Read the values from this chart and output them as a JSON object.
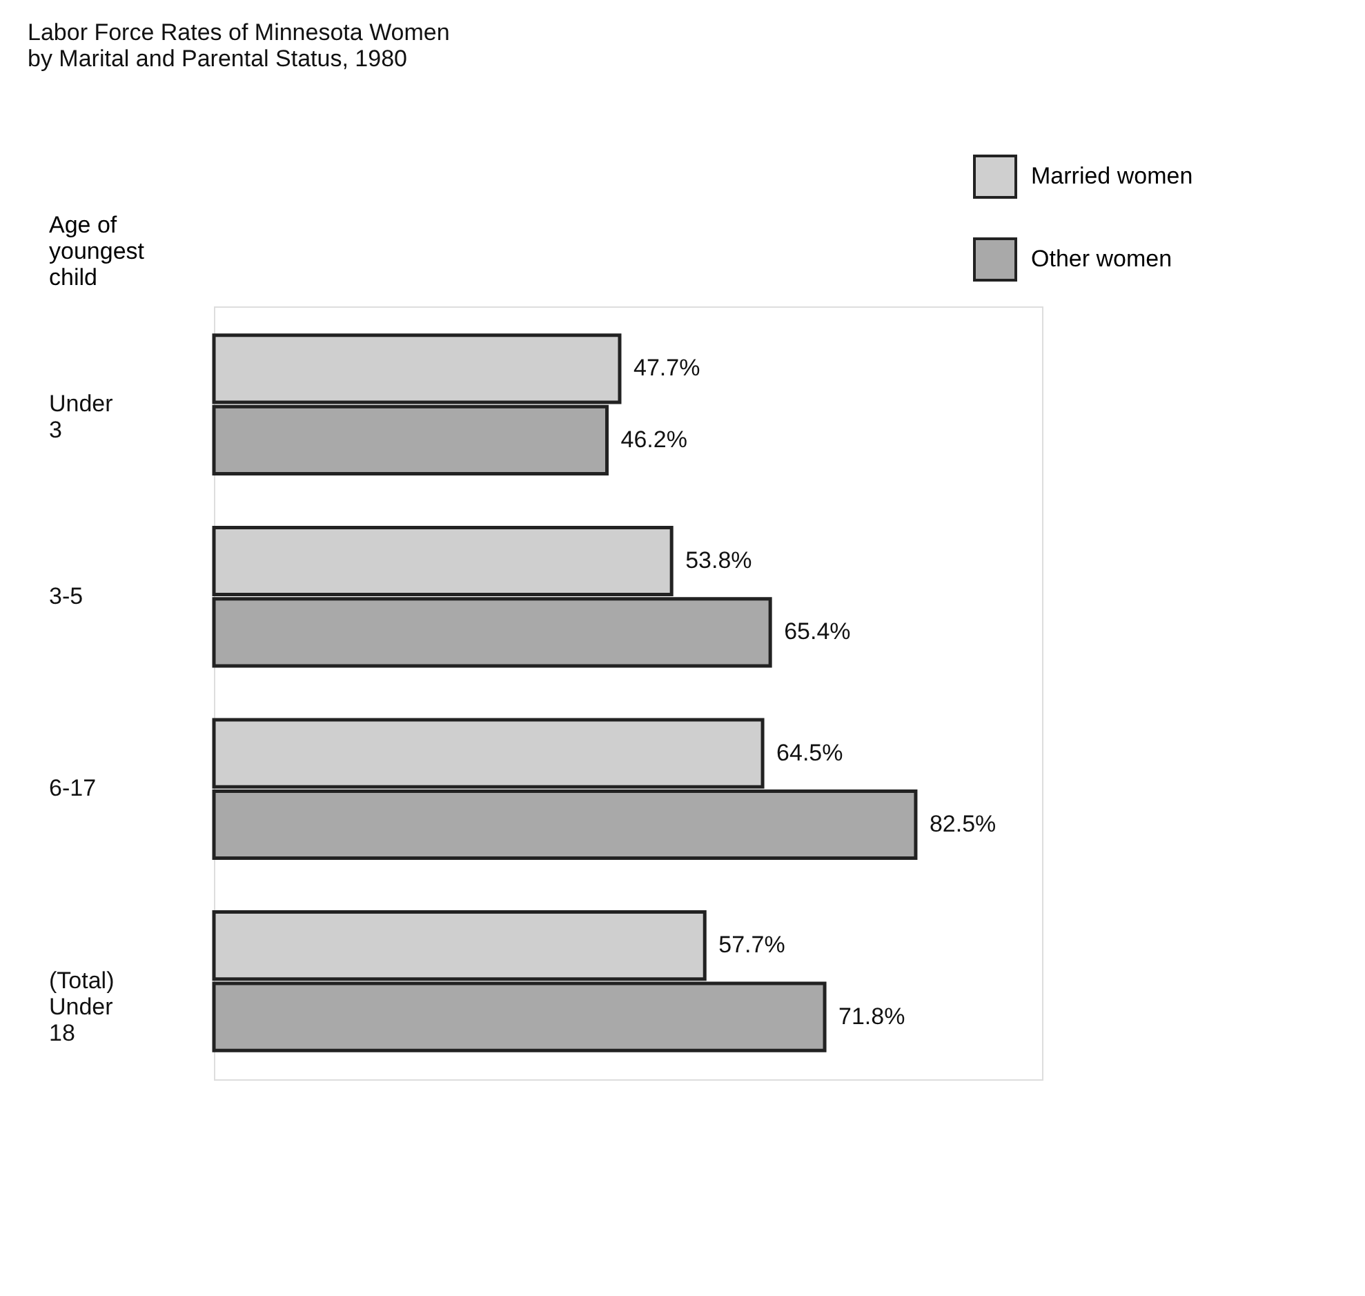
{
  "chart_data": {
    "type": "bar",
    "orientation": "horizontal",
    "title": "Labor Force Rates of Minnesota Women\nby Marital and Parental Status, 1980",
    "ylabel": "Age of\nyoungest\nchild",
    "categories": [
      "Under\n3",
      "3-5",
      "6-17",
      "(Total)\nUnder\n18"
    ],
    "series": [
      {
        "name": "Married women",
        "color": "#cfcfcf",
        "values": [
          47.7,
          53.8,
          64.5,
          57.7
        ],
        "value_labels": [
          "47.7%",
          "53.8%",
          "64.5%",
          "57.7%"
        ]
      },
      {
        "name": "Other women",
        "color": "#a9a9a9",
        "values": [
          46.2,
          65.4,
          82.5,
          71.8
        ],
        "value_labels": [
          "46.2%",
          "65.4%",
          "82.5%",
          "71.8%"
        ]
      }
    ],
    "legend": "top right"
  }
}
